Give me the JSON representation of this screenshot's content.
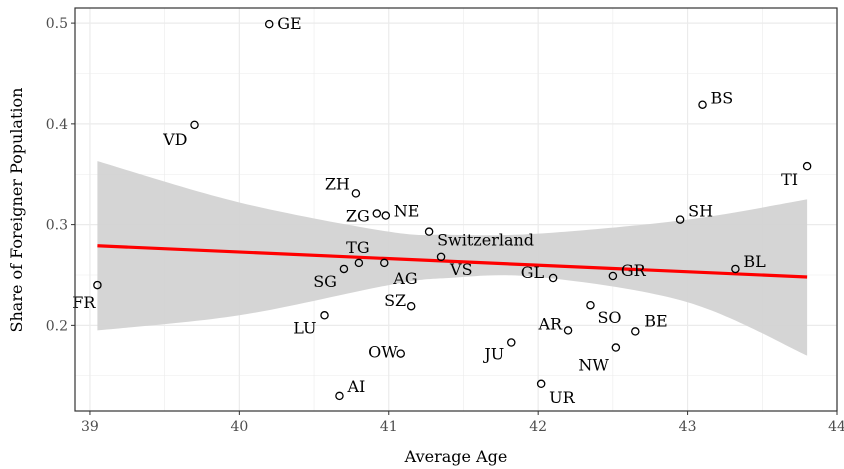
{
  "chart_data": {
    "type": "scatter",
    "title": "",
    "xlabel": "Average Age",
    "ylabel": "Share of Foreigner Population",
    "xlim": [
      38.9,
      44.0
    ],
    "ylim": [
      0.115,
      0.515
    ],
    "x_ticks": [
      "39",
      "40",
      "41",
      "42",
      "43",
      "44"
    ],
    "y_ticks": [
      "0.2",
      "0.3",
      "0.4",
      "0.5"
    ],
    "grid": true,
    "legend": "none",
    "colors": {
      "trend_line": "#ff0000",
      "confidence_band": "#d3d3d3",
      "points": "#000000"
    },
    "points": [
      {
        "label": "GE",
        "x": 40.2,
        "y": 0.499
      },
      {
        "label": "VD",
        "x": 39.7,
        "y": 0.399
      },
      {
        "label": "BS",
        "x": 43.1,
        "y": 0.419
      },
      {
        "label": "TI",
        "x": 43.8,
        "y": 0.358
      },
      {
        "label": "ZH",
        "x": 40.78,
        "y": 0.331
      },
      {
        "label": "ZG",
        "x": 40.92,
        "y": 0.311
      },
      {
        "label": "NE",
        "x": 40.98,
        "y": 0.309
      },
      {
        "label": "SH",
        "x": 42.95,
        "y": 0.305
      },
      {
        "label": "Switzerland",
        "x": 41.27,
        "y": 0.293
      },
      {
        "label": "TG",
        "x": 40.8,
        "y": 0.262
      },
      {
        "label": "SG",
        "x": 40.7,
        "y": 0.256
      },
      {
        "label": "AG",
        "x": 40.97,
        "y": 0.262
      },
      {
        "label": "VS",
        "x": 41.35,
        "y": 0.268
      },
      {
        "label": "GL",
        "x": 42.1,
        "y": 0.247
      },
      {
        "label": "GR",
        "x": 42.5,
        "y": 0.249
      },
      {
        "label": "BL",
        "x": 43.32,
        "y": 0.256
      },
      {
        "label": "FR",
        "x": 39.05,
        "y": 0.24
      },
      {
        "label": "LU",
        "x": 40.57,
        "y": 0.21
      },
      {
        "label": "SZ",
        "x": 41.15,
        "y": 0.219
      },
      {
        "label": "SO",
        "x": 42.35,
        "y": 0.22
      },
      {
        "label": "AR",
        "x": 42.2,
        "y": 0.195
      },
      {
        "label": "BE",
        "x": 42.65,
        "y": 0.194
      },
      {
        "label": "JU",
        "x": 41.82,
        "y": 0.183
      },
      {
        "label": "NW",
        "x": 42.52,
        "y": 0.178
      },
      {
        "label": "OW",
        "x": 41.08,
        "y": 0.172
      },
      {
        "label": "AI",
        "x": 40.67,
        "y": 0.13
      },
      {
        "label": "UR",
        "x": 42.02,
        "y": 0.142
      }
    ],
    "trend_line": {
      "x": [
        39.05,
        43.8
      ],
      "y": [
        0.279,
        0.248
      ]
    },
    "confidence_band": {
      "x": [
        39.05,
        40.0,
        41.0,
        41.4,
        42.0,
        43.0,
        43.8
      ],
      "upper": [
        0.363,
        0.322,
        0.293,
        0.29,
        0.291,
        0.305,
        0.325
      ],
      "lower": [
        0.195,
        0.21,
        0.24,
        0.247,
        0.248,
        0.223,
        0.17
      ]
    }
  }
}
